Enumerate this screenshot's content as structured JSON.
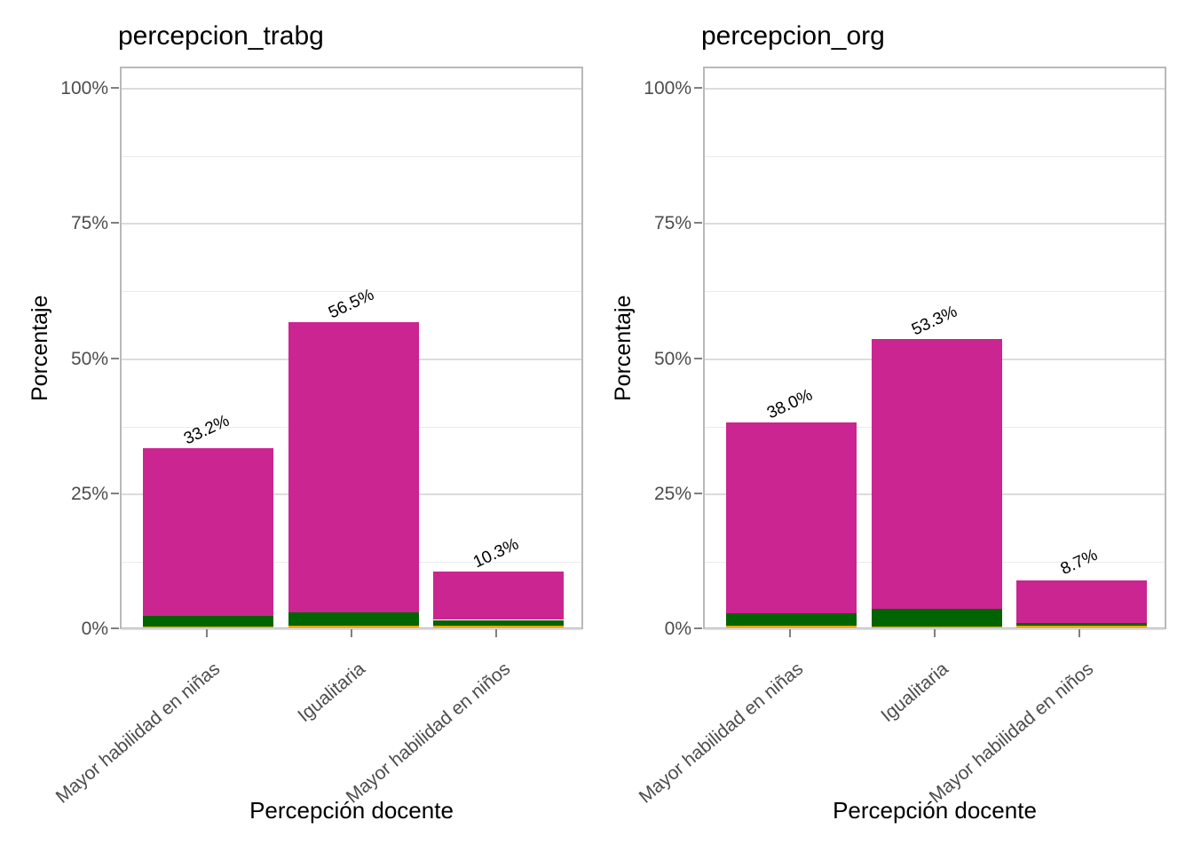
{
  "colors": {
    "magenta": "#CA2590",
    "dark_green": "#006400",
    "orange": "#FFA500",
    "grid_major": "#DCDCDC",
    "grid_minor": "#EBEBEB",
    "panel_border": "#B9B9B9",
    "axis_text": "#4D4D4D",
    "label_text": "#000000",
    "background": "#FFFFFF"
  },
  "chart_data": [
    {
      "type": "bar",
      "title": "percepcion_trabg",
      "xlabel": "Percepción docente",
      "ylabel": "Porcentaje",
      "ylim": [
        0,
        104
      ],
      "grid": true,
      "legend": "none",
      "categories": [
        "Mayor habilidad en niñas",
        "Igualitaria",
        "Mayor habilidad en niños"
      ],
      "bar_totals": [
        33.2,
        56.5,
        10.3
      ],
      "bar_labels": [
        "33.2%",
        "56.5%",
        "10.3%"
      ],
      "series": [
        {
          "name": "orange-segment",
          "color": "#FFA500",
          "values": [
            0.1,
            0.4,
            0.3
          ]
        },
        {
          "name": "darkgreen-segment",
          "color": "#006400",
          "values": [
            2.1,
            2.4,
            1.1
          ]
        },
        {
          "name": "magenta-segment",
          "color": "#CA2590",
          "values": [
            31.0,
            53.7,
            8.9
          ]
        }
      ],
      "y_ticks": [
        {
          "v": 0,
          "label": "0%"
        },
        {
          "v": 25,
          "label": "25%"
        },
        {
          "v": 50,
          "label": "50%"
        },
        {
          "v": 75,
          "label": "75%"
        },
        {
          "v": 100,
          "label": "100%"
        }
      ],
      "y_minor": [
        12.5,
        37.5,
        62.5,
        87.5
      ]
    },
    {
      "type": "bar",
      "title": "percepcion_org",
      "xlabel": "Percepción docente",
      "ylabel": "Porcentaje",
      "ylim": [
        0,
        104
      ],
      "grid": true,
      "legend": "none",
      "categories": [
        "Mayor habilidad en niñas",
        "Igualitaria",
        "Mayor habilidad en niños"
      ],
      "bar_totals": [
        38.0,
        53.3,
        8.7
      ],
      "bar_labels": [
        "38.0%",
        "53.3%",
        "8.7%"
      ],
      "series": [
        {
          "name": "orange-segment",
          "color": "#FFA500",
          "values": [
            0.3,
            0.1,
            0.3
          ]
        },
        {
          "name": "darkgreen-segment",
          "color": "#006400",
          "values": [
            2.3,
            3.3,
            0.5
          ]
        },
        {
          "name": "magenta-segment",
          "color": "#CA2590",
          "values": [
            35.4,
            49.9,
            7.9
          ]
        }
      ],
      "y_ticks": [
        {
          "v": 0,
          "label": "0%"
        },
        {
          "v": 25,
          "label": "25%"
        },
        {
          "v": 50,
          "label": "50%"
        },
        {
          "v": 75,
          "label": "75%"
        },
        {
          "v": 100,
          "label": "100%"
        }
      ],
      "y_minor": [
        12.5,
        37.5,
        62.5,
        87.5
      ]
    }
  ]
}
